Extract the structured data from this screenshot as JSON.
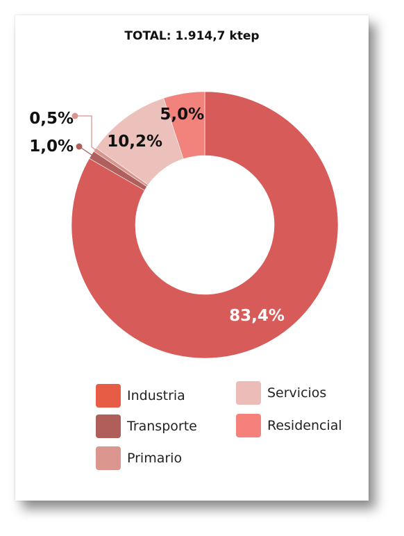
{
  "chart_data": {
    "type": "pie",
    "variant": "donut",
    "title": "TOTAL: 1.914,7 ktep",
    "categories": [
      "Industria",
      "Transporte",
      "Primario",
      "Servicios",
      "Residencial"
    ],
    "values": [
      83.4,
      1.0,
      0.5,
      10.2,
      5.0
    ],
    "data_labels": [
      "83,4%",
      "1,0%",
      "0,5%",
      "10,2%",
      "5,0%"
    ],
    "colors": [
      "#d75b58",
      "#b0605c",
      "#d8948e",
      "#ecc0bb",
      "#f2827c"
    ],
    "legend_placement": "bottom"
  },
  "legend": {
    "items": [
      {
        "label": "Industria",
        "color": "#e65c44"
      },
      {
        "label": "Transporte",
        "color": "#b05e5a"
      },
      {
        "label": "Primario",
        "color": "#db968f"
      },
      {
        "label": "Servicios",
        "color": "#ecbcb8"
      },
      {
        "label": "Residencial",
        "color": "#f4817b"
      }
    ]
  }
}
